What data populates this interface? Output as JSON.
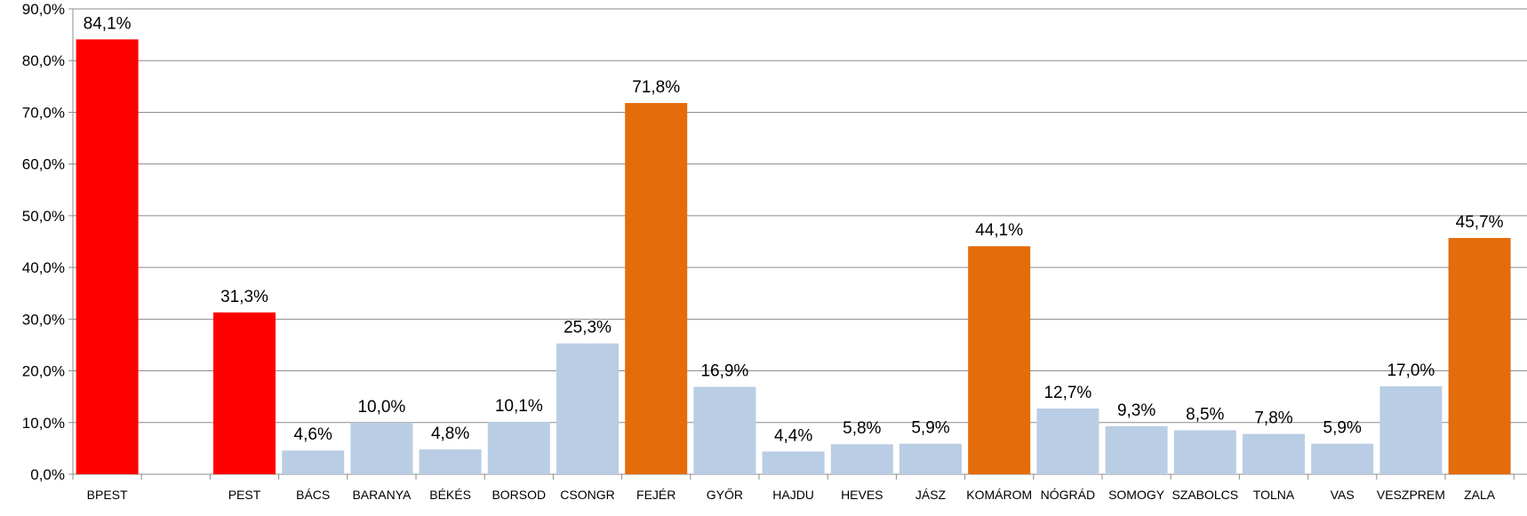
{
  "chart_data": {
    "type": "bar",
    "title": "",
    "xlabel": "",
    "ylabel": "",
    "ylim": [
      0,
      90
    ],
    "y_ticks": [
      "0,0%",
      "10,0%",
      "20,0%",
      "30,0%",
      "40,0%",
      "50,0%",
      "60,0%",
      "70,0%",
      "80,0%",
      "90,0%"
    ],
    "grid": true,
    "legend": "none",
    "categories": [
      "BPEST",
      "",
      "PEST",
      "BÁCS",
      "BARANYA",
      "BÉKÉS",
      "BORSOD",
      "CSONGR",
      "FEJÉR",
      "GYŐR",
      "HAJDU",
      "HEVES",
      "JÁSZ",
      "KOMÁROM",
      "NÓGRÁD",
      "SOMOGY",
      "SZABOLCS",
      "TOLNA",
      "VAS",
      "VESZPREM",
      "ZALA"
    ],
    "values": [
      84.1,
      null,
      31.3,
      4.6,
      10.0,
      4.8,
      10.1,
      25.3,
      71.8,
      16.9,
      4.4,
      5.8,
      5.9,
      44.1,
      12.7,
      9.3,
      8.5,
      7.8,
      5.9,
      17.0,
      45.7
    ],
    "data_labels": [
      "84,1%",
      "",
      "31,3%",
      "4,6%",
      "10,0%",
      "4,8%",
      "10,1%",
      "25,3%",
      "71,8%",
      "16,9%",
      "4,4%",
      "5,8%",
      "5,9%",
      "44,1%",
      "12,7%",
      "9,3%",
      "8,5%",
      "7,8%",
      "5,9%",
      "17,0%",
      "45,7%"
    ],
    "bar_colors": [
      "#ff0000",
      "",
      "#ff0000",
      "#b9cde5",
      "#b9cde5",
      "#b9cde5",
      "#b9cde5",
      "#b9cde5",
      "#e46c0a",
      "#b9cde5",
      "#b9cde5",
      "#b9cde5",
      "#b9cde5",
      "#e46c0a",
      "#b9cde5",
      "#b9cde5",
      "#b9cde5",
      "#b9cde5",
      "#b9cde5",
      "#b9cde5",
      "#e46c0a"
    ]
  }
}
